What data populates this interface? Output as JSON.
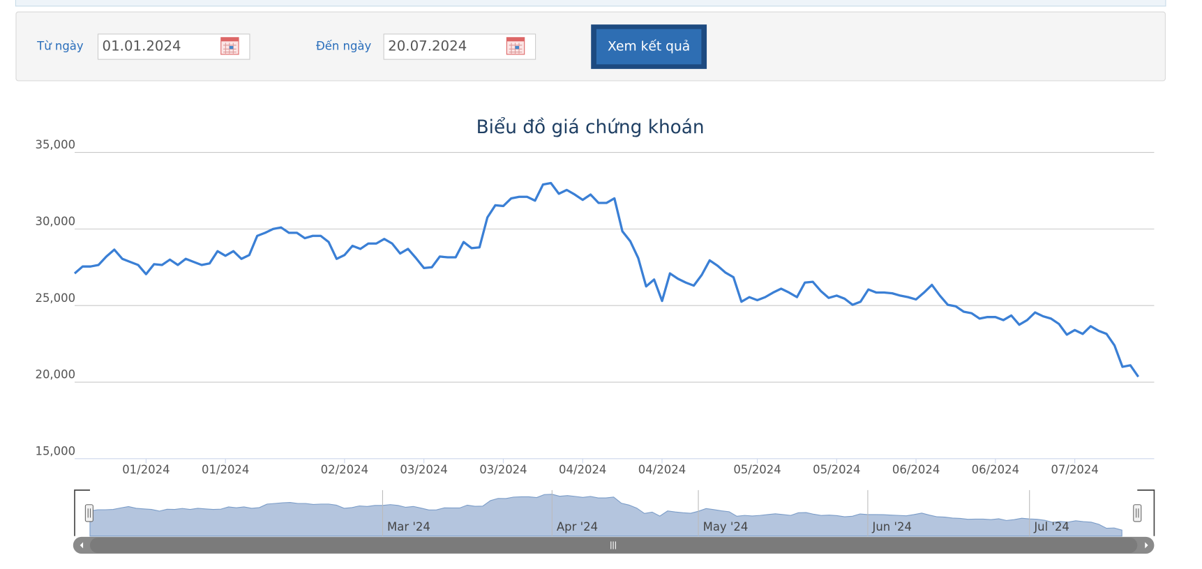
{
  "form": {
    "from_label": "Từ ngày",
    "from_value": "01.01.2024",
    "to_label": "Đến ngày",
    "to_value": "20.07.2024",
    "button": "Xem kết quả"
  },
  "chart_data": {
    "type": "line",
    "title": "Biểu đồ giá chứng khoán",
    "color": "#3a7fd5",
    "values": [
      27100,
      27550,
      27550,
      27650,
      28200,
      28650,
      28050,
      27850,
      27650,
      27050,
      27700,
      27650,
      28000,
      27650,
      28050,
      27850,
      27650,
      27750,
      28550,
      28250,
      28550,
      28050,
      28300,
      29550,
      29750,
      30000,
      30100,
      29750,
      29750,
      29400,
      29550,
      29550,
      29150,
      28050,
      28300,
      28900,
      28700,
      29050,
      29050,
      29350,
      29050,
      28400,
      28700,
      28100,
      27450,
      27500,
      28200,
      28150,
      28150,
      29150,
      28750,
      28800,
      30750,
      31550,
      31500,
      32000,
      32100,
      32100,
      31850,
      32900,
      33000,
      32300,
      32550,
      32250,
      31900,
      32250,
      31700,
      31700,
      32000,
      29850,
      29200,
      28100,
      26250,
      26700,
      25300,
      27100,
      26750,
      26500,
      26300,
      27000,
      27950,
      27600,
      27150,
      26850,
      25250,
      25550,
      25350,
      25550,
      25850,
      26100,
      25850,
      25550,
      26500,
      26550,
      25950,
      25500,
      25650,
      25450,
      25050,
      25250,
      26050,
      25850,
      25850,
      25800,
      25650,
      25550,
      25400,
      25850,
      26350,
      25650,
      25050,
      24950,
      24600,
      24500,
      24150,
      24250,
      24250,
      24050,
      24350,
      23750,
      24050,
      24550,
      24300,
      24150,
      23800,
      23100,
      23400,
      23150,
      23650,
      23350,
      23150,
      22400,
      21000,
      21100,
      20350
    ],
    "ylim": [
      15000,
      35000
    ],
    "yticks": [
      {
        "value": 15000,
        "label": "15,000"
      },
      {
        "value": 20000,
        "label": "20,000"
      },
      {
        "value": 25000,
        "label": "25,000"
      },
      {
        "value": 30000,
        "label": "30,000"
      },
      {
        "value": 35000,
        "label": "35,000"
      }
    ],
    "xlim": [
      0,
      136
    ],
    "xticks": [
      {
        "value": 9,
        "label": "01/2024"
      },
      {
        "value": 19,
        "label": "01/2024"
      },
      {
        "value": 34,
        "label": "02/2024"
      },
      {
        "value": 44,
        "label": "03/2024"
      },
      {
        "value": 54,
        "label": "03/2024"
      },
      {
        "value": 64,
        "label": "04/2024"
      },
      {
        "value": 74,
        "label": "04/2024"
      },
      {
        "value": 86,
        "label": "05/2024"
      },
      {
        "value": 96,
        "label": "05/2024"
      },
      {
        "value": 106,
        "label": "06/2024"
      },
      {
        "value": 116,
        "label": "06/2024"
      },
      {
        "value": 126,
        "label": "07/2024"
      }
    ],
    "grid": true,
    "navigator": {
      "color": "#b4c5de",
      "xticks": [
        {
          "value": 38,
          "label": "Mar '24"
        },
        {
          "value": 60,
          "label": "Apr '24"
        },
        {
          "value": 79,
          "label": "May '24"
        },
        {
          "value": 101,
          "label": "Jun '24"
        },
        {
          "value": 122,
          "label": "Jul '24"
        }
      ]
    }
  }
}
